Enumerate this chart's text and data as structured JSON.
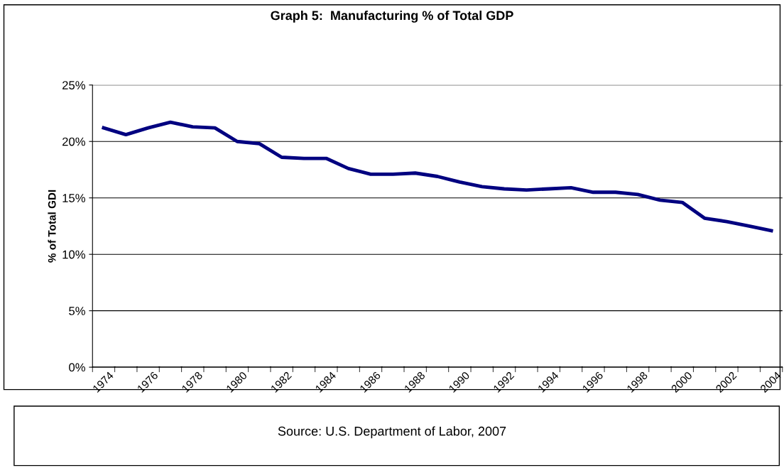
{
  "chart_data": {
    "type": "line",
    "title": "Graph 5:  Manufacturing % of Total GDP",
    "ylabel": "% of Total GDI",
    "categories": [
      "1974",
      null,
      "1976",
      null,
      "1978",
      null,
      "1980",
      null,
      "1982",
      null,
      "1984",
      null,
      "1986",
      null,
      "1988",
      null,
      "1990",
      null,
      "1992",
      null,
      "1994",
      null,
      "1996",
      null,
      "1998",
      null,
      "2000",
      null,
      "2002",
      null,
      "2004"
    ],
    "series": [
      {
        "color": "#000080",
        "values": [
          21.2,
          20.6,
          21.2,
          21.7,
          21.3,
          21.2,
          20.0,
          19.8,
          18.6,
          18.5,
          18.5,
          17.6,
          17.1,
          17.1,
          17.2,
          16.9,
          16.4,
          16.0,
          15.8,
          15.7,
          15.8,
          15.9,
          15.5,
          15.5,
          15.3,
          14.8,
          14.6,
          13.2,
          12.9,
          12.5,
          12.1
        ]
      }
    ],
    "ylim": [
      0,
      25
    ],
    "yticks": [
      {
        "value": 0,
        "label": "0%"
      },
      {
        "value": 5,
        "label": "5%"
      },
      {
        "value": 10,
        "label": "10%"
      },
      {
        "value": 15,
        "label": "15%"
      },
      {
        "value": 20,
        "label": "20%"
      },
      {
        "value": 25,
        "label": "25%"
      }
    ],
    "grid": "y",
    "marker": "none",
    "line_style": "solid",
    "annotations": [
      "Source: U.S. Department of Labor, 2007"
    ]
  }
}
